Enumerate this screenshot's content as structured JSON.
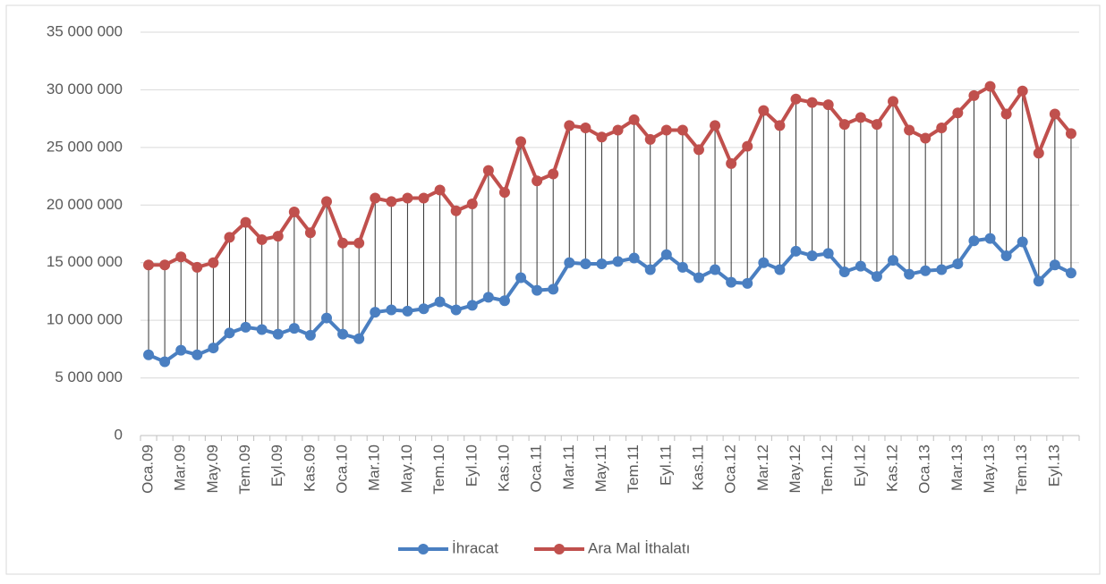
{
  "chart_data": {
    "type": "line",
    "categories": [
      "Oca.09",
      null,
      "Mar.09",
      null,
      "May.09",
      null,
      "Tem.09",
      null,
      "Eyl.09",
      null,
      "Kas.09",
      null,
      "Oca.10",
      null,
      "Mar.10",
      null,
      "May.10",
      null,
      "Tem.10",
      null,
      "Eyl.10",
      null,
      "Kas.10",
      null,
      "Oca.11",
      null,
      "Mar.11",
      null,
      "May.11",
      null,
      "Tem.11",
      null,
      "Eyl.11",
      null,
      "Kas.11",
      null,
      "Oca.12",
      null,
      "Mar.12",
      null,
      "May.12",
      null,
      "Tem.12",
      null,
      "Eyl.12",
      null,
      "Kas.12",
      null,
      "Oca.13",
      null,
      "Mar.13",
      null,
      "May.13",
      null,
      "Tem.13",
      null,
      "Eyl.13",
      null
    ],
    "series": [
      {
        "name": "İhracat",
        "color": "#4a7fc1",
        "values": [
          7000000,
          6400000,
          7400000,
          7000000,
          7600000,
          8900000,
          9400000,
          9200000,
          8800000,
          9300000,
          8700000,
          10200000,
          8800000,
          8400000,
          10700000,
          10900000,
          10800000,
          11000000,
          11600000,
          10900000,
          11300000,
          12000000,
          11700000,
          13700000,
          12600000,
          12700000,
          15000000,
          14900000,
          14900000,
          15100000,
          15400000,
          14400000,
          15700000,
          14600000,
          13700000,
          14400000,
          13300000,
          13200000,
          15000000,
          14400000,
          16000000,
          15600000,
          15800000,
          14200000,
          14700000,
          13800000,
          15200000,
          14000000,
          14300000,
          14400000,
          14900000,
          16900000,
          17100000,
          15600000,
          16800000,
          13400000,
          14800000,
          14100000
        ]
      },
      {
        "name": "Ara Mal İthalatı",
        "color": "#c0504d",
        "values": [
          14800000,
          14800000,
          15500000,
          14600000,
          15000000,
          17200000,
          18500000,
          17000000,
          17300000,
          19400000,
          17600000,
          20300000,
          16700000,
          16700000,
          20600000,
          20300000,
          20600000,
          20600000,
          21300000,
          19500000,
          20100000,
          23000000,
          21100000,
          25500000,
          22100000,
          22700000,
          26900000,
          26700000,
          25900000,
          26500000,
          27400000,
          25700000,
          26500000,
          26500000,
          24800000,
          26900000,
          23600000,
          25100000,
          28200000,
          26900000,
          29200000,
          28900000,
          28700000,
          27000000,
          27600000,
          27000000,
          29000000,
          26500000,
          25800000,
          26700000,
          28000000,
          29500000,
          30300000,
          27900000,
          29900000,
          24500000,
          27900000,
          26200000
        ]
      }
    ],
    "ylim": [
      0,
      35000000
    ],
    "yticks": [
      0,
      {
        "value": 5000000,
        "label": "5 000 000"
      },
      {
        "value": 10000000,
        "label": "10 000 000"
      },
      {
        "value": 15000000,
        "label": "15 000 000"
      },
      {
        "value": 20000000,
        "label": "20 000 000"
      },
      {
        "value": 25000000,
        "label": "25 000 000"
      },
      {
        "value": 30000000,
        "label": "30 000 000"
      },
      {
        "value": 35000000,
        "label": "35 000 000"
      }
    ],
    "grid": true,
    "legend": "bottom"
  }
}
